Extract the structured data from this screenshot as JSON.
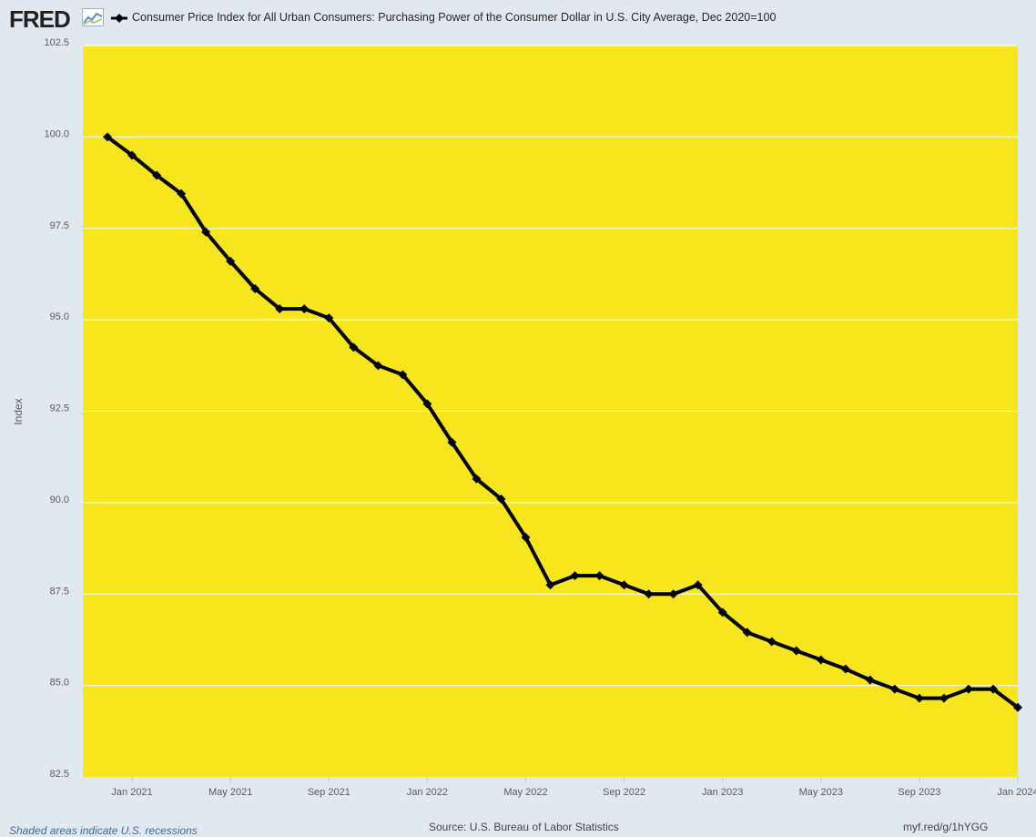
{
  "header": {
    "logo": "FRED",
    "legend_label": "Consumer Price Index for All Urban Consumers: Purchasing Power of the Consumer Dollar in U.S. City Average, Dec 2020=100"
  },
  "footer": {
    "recession_note": "Shaded areas indicate U.S. recessions",
    "source": "Source: U.S. Bureau of Labor Statistics",
    "link": "myf.red/g/1hYGG"
  },
  "colors": {
    "plot_background": "#f7e61e",
    "line": "#000000",
    "page_background": "#e1e9f0"
  },
  "chart_data": {
    "type": "line",
    "xlabel": "",
    "ylabel": "Index",
    "ylim": [
      82.5,
      102.5
    ],
    "y_ticks": [
      "82.5",
      "85.0",
      "87.5",
      "90.0",
      "92.5",
      "95.0",
      "97.5",
      "100.0",
      "102.5"
    ],
    "x_ticks": [
      "Jan 2021",
      "May 2021",
      "Sep 2021",
      "Jan 2022",
      "May 2022",
      "Sep 2022",
      "Jan 2023",
      "May 2023",
      "Sep 2023",
      "Jan 2024"
    ],
    "grid": true,
    "x": [
      "2020-12",
      "2021-01",
      "2021-02",
      "2021-03",
      "2021-04",
      "2021-05",
      "2021-06",
      "2021-07",
      "2021-08",
      "2021-09",
      "2021-10",
      "2021-11",
      "2021-12",
      "2022-01",
      "2022-02",
      "2022-03",
      "2022-04",
      "2022-05",
      "2022-06",
      "2022-07",
      "2022-08",
      "2022-09",
      "2022-10",
      "2022-11",
      "2022-12",
      "2023-01",
      "2023-02",
      "2023-03",
      "2023-04",
      "2023-05",
      "2023-06",
      "2023-07",
      "2023-08",
      "2023-09",
      "2023-10",
      "2023-11",
      "2023-12",
      "2024-01"
    ],
    "series": [
      {
        "values": [
          100.0,
          99.5,
          98.95,
          98.45,
          97.4,
          96.6,
          95.85,
          95.3,
          95.3,
          95.05,
          94.25,
          93.75,
          93.5,
          92.7,
          91.65,
          90.65,
          90.1,
          89.05,
          87.75,
          88.0,
          88.0,
          87.75,
          87.5,
          87.5,
          87.75,
          87.0,
          86.45,
          86.2,
          85.95,
          85.7,
          85.45,
          85.15,
          84.9,
          84.65,
          84.65,
          84.9,
          84.9,
          84.4
        ]
      }
    ]
  }
}
